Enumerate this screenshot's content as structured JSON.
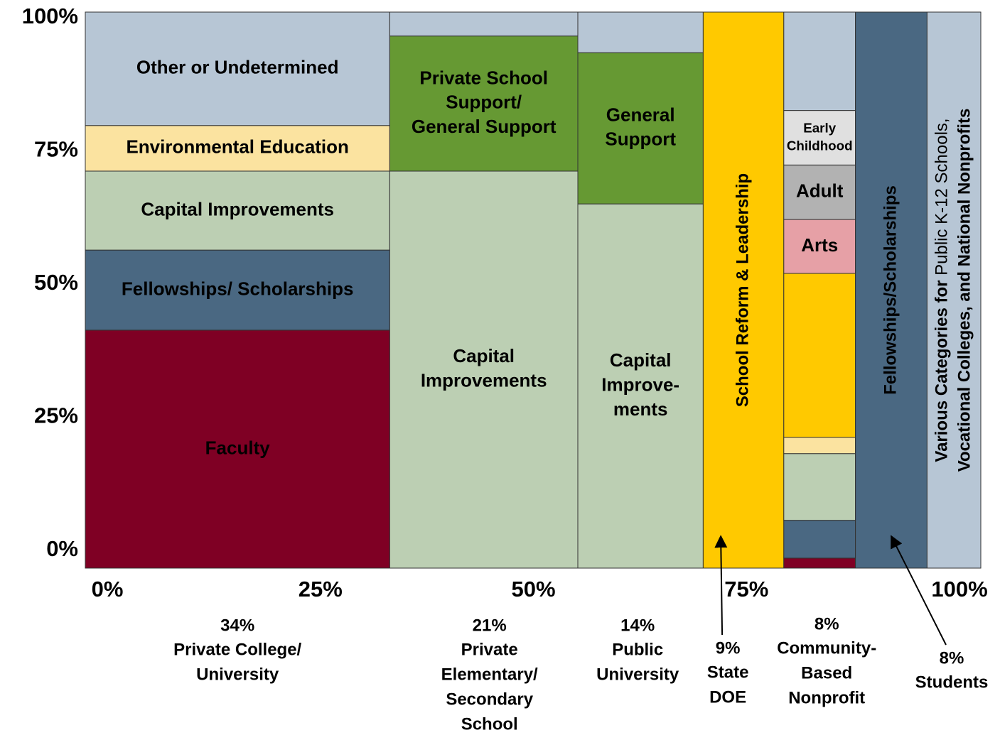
{
  "chart_data": {
    "type": "marimekko",
    "xlim": [
      0,
      100
    ],
    "xticks": [
      {
        "value": 0,
        "label": "0%"
      },
      {
        "value": 25,
        "label": "25%"
      },
      {
        "value": 50,
        "label": "50%"
      },
      {
        "value": 75,
        "label": "75%"
      },
      {
        "value": 100,
        "label": "100%"
      }
    ],
    "ylim": [
      0,
      100
    ],
    "yticks": [
      {
        "value": 0,
        "label": "0%"
      },
      {
        "value": 25,
        "label": "25%"
      },
      {
        "value": 50,
        "label": "50%"
      },
      {
        "value": 75,
        "label": "75%"
      },
      {
        "value": 100,
        "label": "100%"
      }
    ],
    "columns": [
      {
        "width": 34,
        "width_label": "34%",
        "name": [
          "Private College/",
          "University"
        ],
        "segments": [
          {
            "label": [
              "Faculty"
            ],
            "value": 42.8,
            "color": "#7f0024"
          },
          {
            "label": [
              "Fellowships/ Scholarships"
            ],
            "value": 14.4,
            "color": "#4a6882"
          },
          {
            "label": [
              "Capital Improvements"
            ],
            "value": 14.2,
            "color": "#bccfb3"
          },
          {
            "label": [
              "Environmental Education"
            ],
            "value": 8.2,
            "color": "#fbe3a0"
          },
          {
            "label": [
              "Other or Undetermined"
            ],
            "value": 20.4,
            "color": "#b7c6d5"
          }
        ]
      },
      {
        "width": 21,
        "width_label": "21%",
        "name": [
          "Private",
          "Elementary/",
          "Secondary",
          "School"
        ],
        "segments": [
          {
            "label": [
              "Capital",
              "Improvements"
            ],
            "value": 71.4,
            "color": "#bccfb3"
          },
          {
            "label": [
              "Private School",
              "Support/",
              "General Support"
            ],
            "value": 24.3,
            "color": "#669933"
          },
          {
            "value": 4.3,
            "color": "#b7c6d5"
          }
        ]
      },
      {
        "width": 14,
        "width_label": "14%",
        "name": [
          "Public",
          "University"
        ],
        "segments": [
          {
            "label": [
              "Capital",
              "Improve-",
              "ments"
            ],
            "value": 65.5,
            "color": "#bccfb3"
          },
          {
            "label": [
              "General",
              "Support"
            ],
            "value": 27.2,
            "color": "#669933"
          },
          {
            "value": 7.3,
            "color": "#b7c6d5"
          }
        ]
      },
      {
        "width": 9,
        "width_label": "9%",
        "name": [
          "State",
          "DOE"
        ],
        "segments": [
          {
            "label": [
              "School Reform & Leadership"
            ],
            "value": 100,
            "color": "#ffc900"
          }
        ]
      },
      {
        "width": 8,
        "width_label": "8%",
        "name": [
          "Community-",
          "Based",
          "Nonprofit"
        ],
        "segments": [
          {
            "value": 1.8,
            "color": "#7f0024"
          },
          {
            "value": 6.8,
            "color": "#4a6882"
          },
          {
            "value": 12.0,
            "color": "#bccfb3"
          },
          {
            "value": 2.9,
            "color": "#fbe3a0"
          },
          {
            "value": 29.5,
            "color": "#ffc900"
          },
          {
            "label": [
              "Arts"
            ],
            "value": 9.7,
            "color": "#e6a0a6"
          },
          {
            "label": [
              "Adult"
            ],
            "value": 9.8,
            "color": "#b2b2b2"
          },
          {
            "label": [
              "Early",
              "Childhood"
            ],
            "value": 9.8,
            "color": "#e0e0e0"
          },
          {
            "value": 17.7,
            "color": "#b7c6d5"
          }
        ]
      },
      {
        "width": 8,
        "width_label": "8%",
        "name": [
          "Students"
        ],
        "segments": [
          {
            "label": [
              "Fellowships/Scholarships"
            ],
            "value": 100,
            "color": "#4a6882"
          }
        ]
      },
      {
        "width": 6,
        "segments": [
          {
            "label": [
              [
                "Various Categories  for",
                " Public K-12 Schools,"
              ],
              "Vocational Colleges, and National Nonprofits"
            ],
            "value": 100,
            "color": "#b7c6d5"
          }
        ]
      }
    ]
  }
}
